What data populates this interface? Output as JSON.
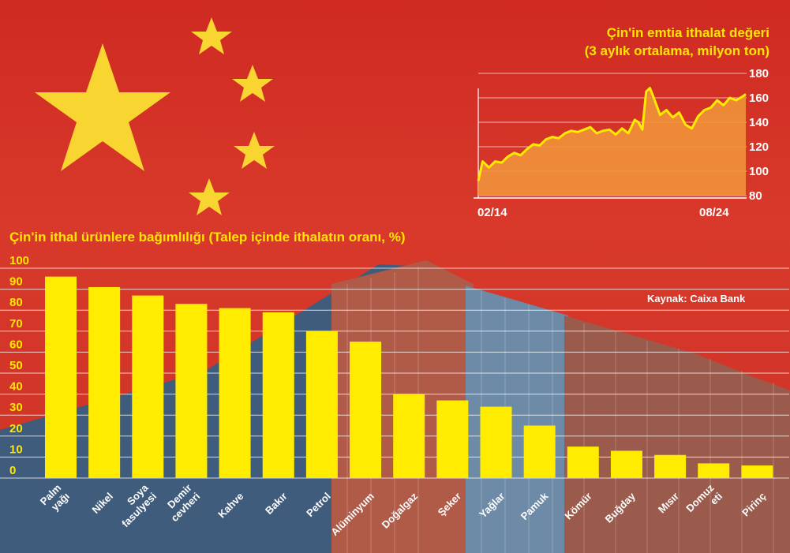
{
  "inset_title_line1": "Çin'in emtia ithalat değeri",
  "inset_title_line2": "(3 aylık ortalama, milyon ton)",
  "main_title": "Çin'in ithal ürünlere bağımlılığı  (Talep içinde ithalatın oranı, %)",
  "source": "Kaynak: Caixa Bank",
  "colors": {
    "bars": "#ffec00",
    "line": "#ffec00",
    "area": "#f0923a",
    "text": "#ffe600"
  },
  "chart_data": [
    {
      "type": "bar",
      "title": "Çin'in ithal ürünlere bağımlılığı  (Talep içinde ithalatın oranı, %)",
      "categories": [
        "Palm yağı",
        "Nikel",
        "Soya fasulyesi",
        "Demir cevheri",
        "Kahve",
        "Bakır",
        "Petrol",
        "Alüminyum",
        "Doğalgaz",
        "Şeker",
        "Yağlar",
        "Pamuk",
        "Kömür",
        "Buğday",
        "Mısır",
        "Domuz eti",
        "Pirinç"
      ],
      "category_lines": [
        [
          "Palm",
          "yağı"
        ],
        [
          "Nikel"
        ],
        [
          "Soya",
          "fasulyesi"
        ],
        [
          "Demir",
          "cevheri"
        ],
        [
          "Kahve"
        ],
        [
          "Bakır"
        ],
        [
          "Petrol"
        ],
        [
          "Alüminyum"
        ],
        [
          "Doğalgaz"
        ],
        [
          "Şeker"
        ],
        [
          "Yağlar"
        ],
        [
          "Pamuk"
        ],
        [
          "Kömür"
        ],
        [
          "Buğday"
        ],
        [
          "Mısır"
        ],
        [
          "Domuz",
          "eti"
        ],
        [
          "Pirinç"
        ]
      ],
      "values": [
        96,
        91,
        87,
        83,
        81,
        79,
        70,
        65,
        40,
        37,
        34,
        25,
        15,
        13,
        11,
        7,
        6
      ],
      "ylim": [
        0,
        100
      ],
      "yticks": [
        "0",
        "10",
        "20",
        "30",
        "40",
        "50",
        "60",
        "70",
        "80",
        "90",
        "100"
      ],
      "grid": true
    },
    {
      "type": "area",
      "title": "Çin'in emtia ithalat değeri (3 aylık ortalama, milyon ton)",
      "x_labels": [
        "02/14",
        "08/24"
      ],
      "yticks": [
        "80",
        "100",
        "120",
        "140",
        "160",
        "180"
      ],
      "ylim": [
        80,
        180
      ],
      "x_range": [
        2014.08,
        2024.63
      ],
      "x": [
        2014.08,
        2014.25,
        2014.5,
        2014.75,
        2015.0,
        2015.25,
        2015.5,
        2015.75,
        2016.0,
        2016.25,
        2016.5,
        2016.75,
        2017.0,
        2017.25,
        2017.5,
        2017.75,
        2018.0,
        2018.25,
        2018.5,
        2018.75,
        2019.0,
        2019.25,
        2019.5,
        2019.75,
        2020.0,
        2020.25,
        2020.4,
        2020.55,
        2020.7,
        2020.85,
        2021.0,
        2021.25,
        2021.5,
        2021.75,
        2022.0,
        2022.25,
        2022.5,
        2022.75,
        2023.0,
        2023.25,
        2023.5,
        2023.75,
        2024.0,
        2024.25,
        2024.5,
        2024.63
      ],
      "y": [
        92,
        108,
        103,
        108,
        107,
        112,
        115,
        113,
        118,
        122,
        121,
        126,
        128,
        127,
        131,
        133,
        132,
        134,
        136,
        131,
        133,
        134,
        130,
        135,
        131,
        142,
        140,
        134,
        165,
        168,
        160,
        146,
        150,
        144,
        148,
        138,
        135,
        145,
        150,
        152,
        158,
        154,
        160,
        158,
        161,
        163
      ]
    }
  ]
}
